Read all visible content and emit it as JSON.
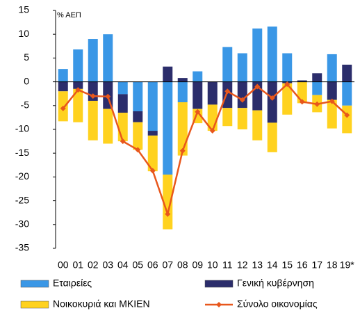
{
  "chart_data": {
    "type": "bar",
    "y_label": "% ΑΕΠ",
    "categories": [
      "00",
      "01",
      "02",
      "03",
      "04",
      "05",
      "06",
      "07",
      "08",
      "09",
      "10",
      "11",
      "12",
      "13",
      "14",
      "15",
      "16",
      "17",
      "18",
      "19*"
    ],
    "series": [
      {
        "name": "Εταιρείες",
        "color": "#3a97e6",
        "type": "bar",
        "values": [
          2.7,
          6.8,
          9,
          10,
          -2.6,
          -6.2,
          -10.3,
          -19.5,
          -4.3,
          2.2,
          0,
          7.3,
          6,
          11.2,
          11.6,
          6,
          0,
          -2.8,
          5.8,
          -5
        ]
      },
      {
        "name": "Γενική κυβέρνηση",
        "color": "#2b2d6b",
        "type": "bar",
        "values": [
          -2,
          -1.5,
          -4,
          -5.7,
          -3.9,
          -2.3,
          -1,
          3.2,
          0.8,
          -5.7,
          -4.8,
          -5.5,
          -5.5,
          -6,
          -8.6,
          -0.3,
          0.3,
          1.8,
          -3.8,
          3.6
        ]
      },
      {
        "name": "Νοικοκυριά και ΜΚΙΕΝ",
        "color": "#ffd21f",
        "type": "bar",
        "values": [
          -6.3,
          -7,
          -8.3,
          -7.3,
          -6,
          -5.8,
          -7.5,
          -11.5,
          -11.2,
          -3,
          -5.5,
          -3.8,
          -4.5,
          -6.3,
          -6.2,
          -6.6,
          -4.5,
          -3.6,
          -6,
          -5.8
        ]
      },
      {
        "name": "Σύνολο οικονομίας",
        "color": "#e8571c",
        "type": "line",
        "values": [
          -5.6,
          -1.7,
          -3,
          -3.1,
          -12.5,
          -14.3,
          -18.7,
          -27.8,
          -14.5,
          -6.3,
          -10.3,
          -2,
          -3.8,
          -1,
          -3.4,
          -0.5,
          -4.2,
          -4.7,
          -4.1,
          -7
        ]
      }
    ],
    "ylim": [
      -35,
      15
    ],
    "yticks": [
      15,
      10,
      5,
      0,
      -5,
      -10,
      -15,
      -20,
      -25,
      -30,
      -35
    ]
  }
}
